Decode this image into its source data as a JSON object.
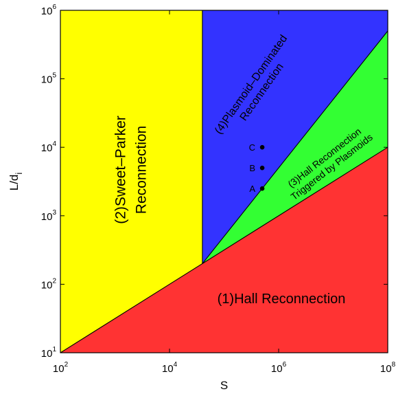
{
  "chart_data": {
    "type": "area",
    "xlabel": "S",
    "ylabel": "L/d",
    "ylabel_subscript": "i",
    "x_scale": "log",
    "y_scale": "log",
    "xlim": [
      100,
      100000000
    ],
    "ylim": [
      10,
      1000000
    ],
    "x_ticks": [
      {
        "value": 100,
        "base": "10",
        "exp": "2"
      },
      {
        "value": 10000,
        "base": "10",
        "exp": "4"
      },
      {
        "value": 1000000,
        "base": "10",
        "exp": "6"
      },
      {
        "value": 100000000,
        "base": "10",
        "exp": "8"
      }
    ],
    "y_ticks": [
      {
        "value": 10,
        "base": "10",
        "exp": "1"
      },
      {
        "value": 100,
        "base": "10",
        "exp": "2"
      },
      {
        "value": 1000,
        "base": "10",
        "exp": "3"
      },
      {
        "value": 10000,
        "base": "10",
        "exp": "4"
      },
      {
        "value": 100000,
        "base": "10",
        "exp": "5"
      },
      {
        "value": 1000000,
        "base": "10",
        "exp": "6"
      }
    ],
    "grid": false,
    "legend": "none",
    "regions": [
      {
        "id": "hall",
        "label": "(1)Hall Reconnection",
        "color": "#ff3333",
        "polygon": [
          [
            100,
            10
          ],
          [
            100000000,
            10
          ],
          [
            100000000,
            10000
          ]
        ],
        "label_lines": [
          "(1)Hall Reconnection"
        ]
      },
      {
        "id": "sweet-parker",
        "label": "(2)Sweet–Parker Reconnection",
        "color": "#ffff00",
        "polygon": [
          [
            100,
            10
          ],
          [
            40000,
            200
          ],
          [
            40000,
            1000000
          ],
          [
            100,
            1000000
          ]
        ],
        "label_lines": [
          "(2)Sweet–Parker",
          "Reconnection"
        ]
      },
      {
        "id": "hall-plasmoids",
        "label": "(3)Hall Reconnection Triggered by Plasmoids",
        "color": "#33ff33",
        "polygon": [
          [
            40000,
            200
          ],
          [
            100000000,
            10000
          ],
          [
            100000000,
            500000
          ]
        ],
        "label_lines": [
          "(3)Hall Reconnection",
          "Triggered by Plasmoids"
        ]
      },
      {
        "id": "plasmoid-dominated",
        "label": "(4)Plasmoid–Dominated Reconnection",
        "color": "#3333ff",
        "polygon": [
          [
            40000,
            200
          ],
          [
            100000000,
            500000
          ],
          [
            100000000,
            1000000
          ],
          [
            40000,
            1000000
          ]
        ],
        "label_lines": [
          "(4)Plasmoid–Dominated",
          "Reconnection"
        ]
      }
    ],
    "boundaries": [
      {
        "x": [
          100,
          100000000
        ],
        "y": [
          10,
          10000
        ]
      },
      {
        "x": [
          40000,
          40000
        ],
        "y": [
          200,
          1000000
        ]
      },
      {
        "x": [
          40000,
          100000000
        ],
        "y": [
          200,
          500000
        ]
      }
    ],
    "points": [
      {
        "label": "A",
        "x": 500000,
        "y": 2500
      },
      {
        "label": "B",
        "x": 500000,
        "y": 5000
      },
      {
        "label": "C",
        "x": 500000,
        "y": 10000
      }
    ]
  }
}
